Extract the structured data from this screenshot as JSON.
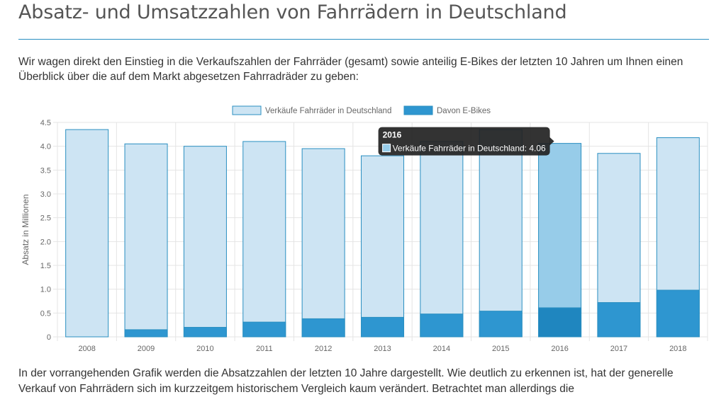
{
  "page": {
    "title": "Absatz- und Umsatzzahlen von Fahrrädern in Deutschland",
    "intro": "Wir wagen direkt den Einstieg in die Verkaufszahlen der Fahrräder (gesamt) sowie anteilig E-Bikes der letzten 10 Jahren um Ihnen einen Überblick über die auf dem Markt abgesetzen Fahrradräder zu geben:",
    "outro": "In der vorrangehenden Grafik werden die Absatzzahlen der letzten 10 Jahre dargestellt. Wie deutlich zu erkennen ist, hat der generelle Verkauf von Fahrrädern sich im kurzzeitgem historischem Vergleich kaum verändert. Betrachtet man allerdings die"
  },
  "colors": {
    "total_fill": "#cde4f3",
    "total_stroke": "#2a8fc1",
    "ebike_fill": "#2e96d0",
    "hover_total_fill": "#97cce9",
    "hover_ebike_fill": "#1f86bf",
    "grid": "#e4e4e4",
    "tooltip_bg": "#222222"
  },
  "chart_data": {
    "type": "bar",
    "title": "",
    "xlabel": "",
    "ylabel": "Absatz in Millionen",
    "ylim": [
      0,
      4.5
    ],
    "ytick_step": 0.5,
    "grid": true,
    "legend_position": "top-center",
    "stacked": "overlay",
    "categories": [
      "2008",
      "2009",
      "2010",
      "2011",
      "2012",
      "2013",
      "2014",
      "2015",
      "2016",
      "2017",
      "2018"
    ],
    "series": [
      {
        "name": "Verkäufe Fahrräder in Deutschland",
        "values": [
          4.35,
          4.05,
          4.0,
          4.1,
          3.95,
          3.8,
          4.1,
          4.35,
          4.06,
          3.85,
          4.18
        ]
      },
      {
        "name": "Davon E-Bikes",
        "values": [
          0.0,
          0.15,
          0.2,
          0.31,
          0.38,
          0.41,
          0.48,
          0.54,
          0.61,
          0.72,
          0.98
        ]
      }
    ],
    "hovered_category": "2016",
    "tooltip": {
      "title": "2016",
      "label": "Verkäufe Fahrräder in Deutschland: 4.06"
    }
  }
}
